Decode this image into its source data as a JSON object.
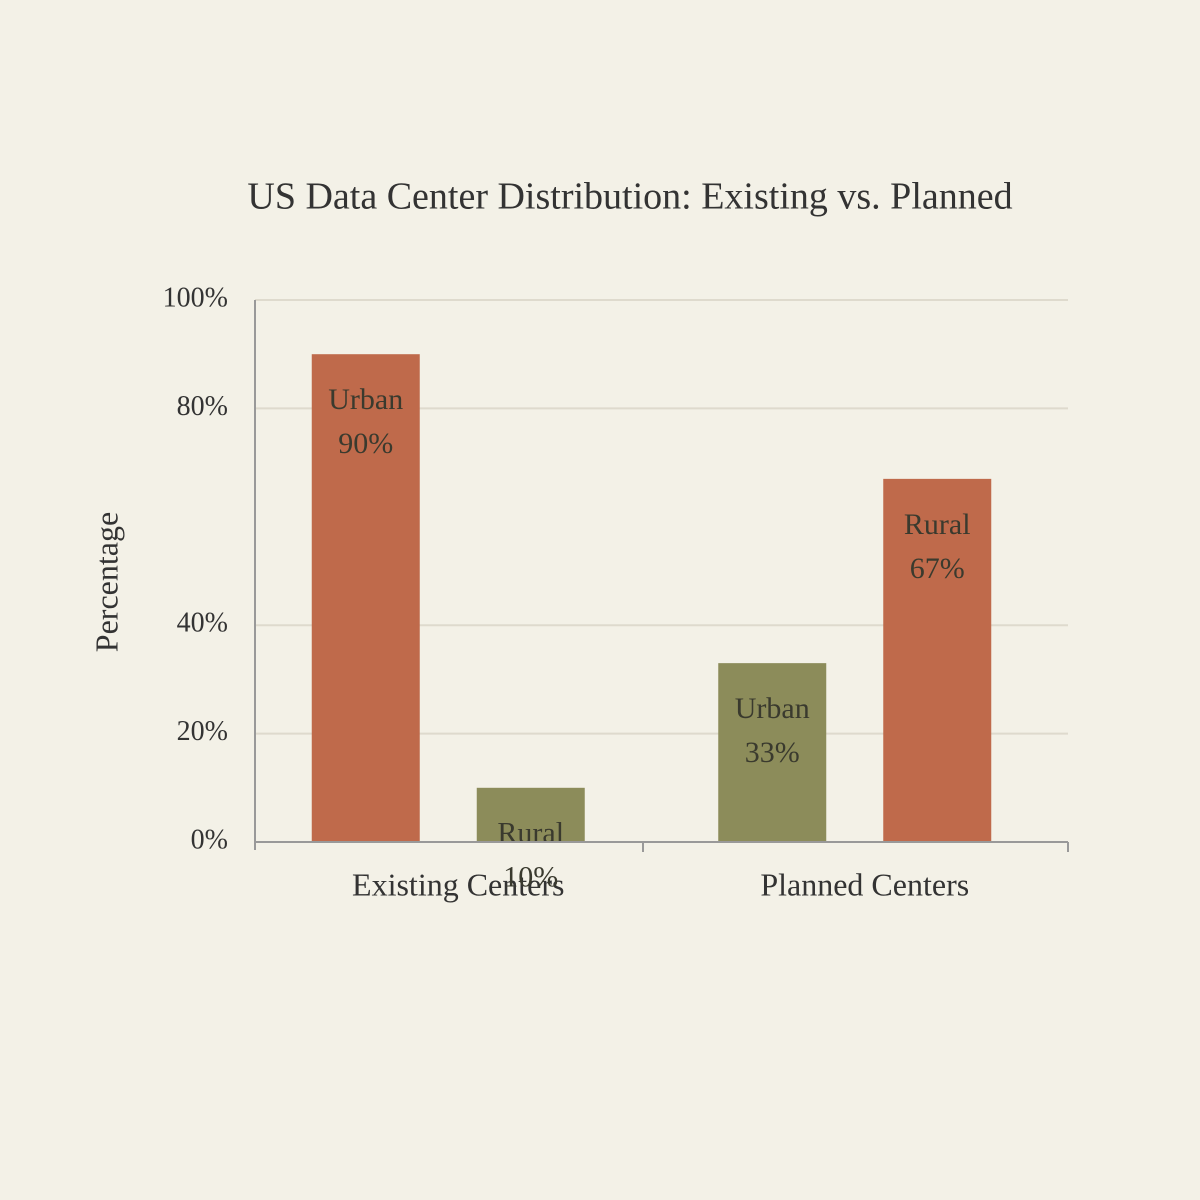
{
  "chart_data": {
    "type": "bar",
    "title": "US Data Center Distribution: Existing vs. Planned",
    "y_label": "Percentage",
    "categories": [
      "Existing Centers",
      "Planned Centers"
    ],
    "series": [
      {
        "name": "Urban",
        "colors": [
          "#bf6a4b",
          "#8c8c5a"
        ],
        "values": [
          90,
          33
        ],
        "value_labels": [
          "90%",
          "33%"
        ]
      },
      {
        "name": "Rural",
        "colors": [
          "#8c8c5a",
          "#bf6a4b"
        ],
        "values": [
          10,
          67
        ],
        "value_labels": [
          "10%",
          "67%"
        ]
      }
    ],
    "ylim": [
      0,
      100
    ],
    "yticks": [
      {
        "value": 0,
        "label": "0%"
      },
      {
        "value": 20,
        "label": "20%"
      },
      {
        "value": 40,
        "label": "40%"
      },
      {
        "value": 80,
        "label": "80%"
      },
      {
        "value": 100,
        "label": "100%"
      }
    ],
    "grid": true
  }
}
